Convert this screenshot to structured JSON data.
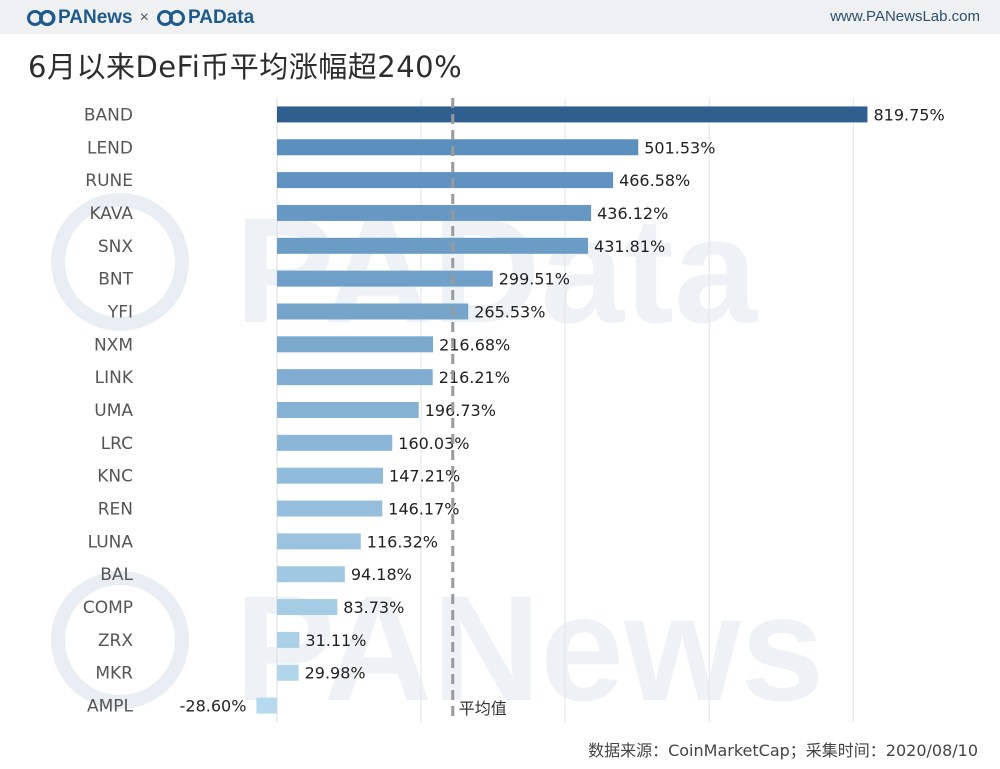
{
  "header": {
    "brand_left": "PANews",
    "brand_sep": "×",
    "brand_right": "PAData",
    "site_url": "www.PANewsLab.com"
  },
  "title": "6月以来DeFi币平均涨幅超240%",
  "chart_data": {
    "type": "bar",
    "orientation": "horizontal",
    "title": "6月以来DeFi币平均涨幅超240%",
    "categories": [
      "BAND",
      "LEND",
      "RUNE",
      "KAVA",
      "SNX",
      "BNT",
      "YFI",
      "NXM",
      "LINK",
      "UMA",
      "LRC",
      "KNC",
      "REN",
      "LUNA",
      "BAL",
      "COMP",
      "ZRX",
      "MKR",
      "AMPL"
    ],
    "values": [
      819.75,
      501.53,
      466.58,
      436.12,
      431.81,
      299.51,
      265.53,
      216.68,
      216.21,
      196.73,
      160.03,
      147.21,
      146.17,
      116.32,
      94.18,
      83.73,
      31.11,
      29.98,
      -28.6
    ],
    "data_labels": [
      "819.75%",
      "501.53%",
      "466.58%",
      "436.12%",
      "431.81%",
      "299.51%",
      "265.53%",
      "216.68%",
      "216.21%",
      "196.73%",
      "160.03%",
      "147.21%",
      "146.17%",
      "116.32%",
      "94.18%",
      "83.73%",
      "31.11%",
      "29.98%",
      "-28.60%"
    ],
    "xlim": [
      -50,
      850
    ],
    "gridlines": [
      200,
      400,
      600,
      800
    ],
    "average_line": {
      "value": 244,
      "label": "平均值"
    },
    "colors": {
      "dark": "#2f5f8f",
      "mid": "#5b8fbd",
      "light": "#b6d9ee"
    },
    "xlabel": "",
    "ylabel": ""
  },
  "footer": {
    "source": "数据来源：CoinMarketCap；采集时间：2020/08/10"
  },
  "watermarks": [
    "PAData",
    "PANews"
  ]
}
